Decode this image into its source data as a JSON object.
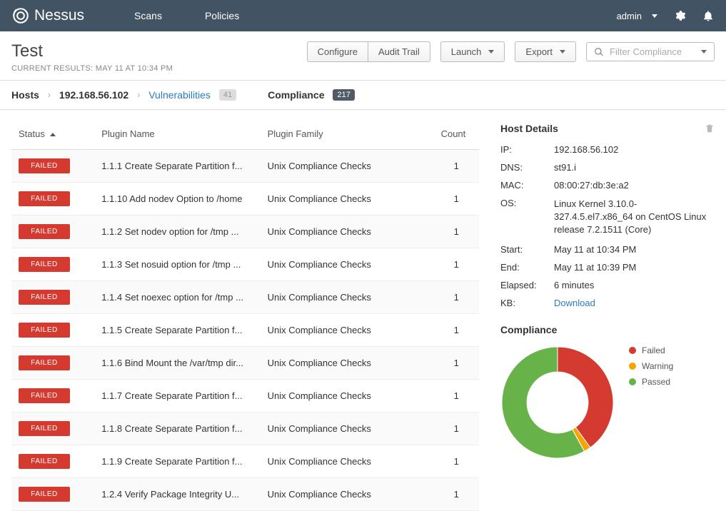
{
  "colors": {
    "topnav_bg": "#425363",
    "failed": "#d43a2f",
    "warning": "#f7a300",
    "passed": "#67b34a",
    "link": "#2a7bbd"
  },
  "nav": {
    "brand": "Nessus",
    "links": [
      "Scans",
      "Policies"
    ],
    "user": "admin"
  },
  "header": {
    "title": "Test",
    "subtitle": "CURRENT RESULTS: MAY 11 AT 10:34 PM",
    "buttons": {
      "configure": "Configure",
      "audit_trail": "Audit Trail",
      "launch": "Launch",
      "export": "Export"
    },
    "search_placeholder": "Filter Compliance"
  },
  "crumbs": {
    "hosts": "Hosts",
    "host_ip": "192.168.56.102",
    "vuln_label": "Vulnerabilities",
    "vuln_count": "41",
    "compliance_label": "Compliance",
    "compliance_count": "217"
  },
  "table": {
    "headers": {
      "status": "Status",
      "plugin_name": "Plugin Name",
      "plugin_family": "Plugin Family",
      "count": "Count"
    },
    "rows": [
      {
        "status": "FAILED",
        "name": "1.1.1 Create Separate Partition f...",
        "family": "Unix Compliance Checks",
        "count": "1"
      },
      {
        "status": "FAILED",
        "name": "1.1.10 Add nodev Option to /home",
        "family": "Unix Compliance Checks",
        "count": "1"
      },
      {
        "status": "FAILED",
        "name": "1.1.2 Set nodev option for /tmp ...",
        "family": "Unix Compliance Checks",
        "count": "1"
      },
      {
        "status": "FAILED",
        "name": "1.1.3 Set nosuid option for /tmp ...",
        "family": "Unix Compliance Checks",
        "count": "1"
      },
      {
        "status": "FAILED",
        "name": "1.1.4 Set noexec option for /tmp ...",
        "family": "Unix Compliance Checks",
        "count": "1"
      },
      {
        "status": "FAILED",
        "name": "1.1.5 Create Separate Partition f...",
        "family": "Unix Compliance Checks",
        "count": "1"
      },
      {
        "status": "FAILED",
        "name": "1.1.6 Bind Mount the /var/tmp dir...",
        "family": "Unix Compliance Checks",
        "count": "1"
      },
      {
        "status": "FAILED",
        "name": "1.1.7 Create Separate Partition f...",
        "family": "Unix Compliance Checks",
        "count": "1"
      },
      {
        "status": "FAILED",
        "name": "1.1.8 Create Separate Partition f...",
        "family": "Unix Compliance Checks",
        "count": "1"
      },
      {
        "status": "FAILED",
        "name": "1.1.9 Create Separate Partition f...",
        "family": "Unix Compliance Checks",
        "count": "1"
      },
      {
        "status": "FAILED",
        "name": "1.2.4 Verify Package Integrity U...",
        "family": "Unix Compliance Checks",
        "count": "1"
      }
    ]
  },
  "host_details": {
    "title": "Host Details",
    "ip_label": "IP:",
    "ip": "192.168.56.102",
    "dns_label": "DNS:",
    "dns": "st91.i",
    "mac_label": "MAC:",
    "mac": "08:00:27:db:3e:a2",
    "os_label": "OS:",
    "os": "Linux Kernel 3.10.0-327.4.5.el7.x86_64 on CentOS Linux release 7.2.1511 (Core)",
    "start_label": "Start:",
    "start": "May 11 at 10:34 PM",
    "end_label": "End:",
    "end": "May 11 at 10:39 PM",
    "elapsed_label": "Elapsed:",
    "elapsed": "6 minutes",
    "kb_label": "KB:",
    "kb": "Download"
  },
  "compliance_chart": {
    "title": "Compliance",
    "type": "donut",
    "size": 160,
    "inner_radius_ratio": 0.55,
    "start_angle_deg": 0,
    "segments": [
      {
        "label": "Failed",
        "pct": 40,
        "color": "#d43a2f"
      },
      {
        "label": "Warning",
        "pct": 2,
        "color": "#f7a300"
      },
      {
        "label": "Passed",
        "pct": 58,
        "color": "#67b34a"
      }
    ],
    "legend_labels": {
      "failed": "Failed",
      "warning": "Warning",
      "passed": "Passed"
    }
  }
}
